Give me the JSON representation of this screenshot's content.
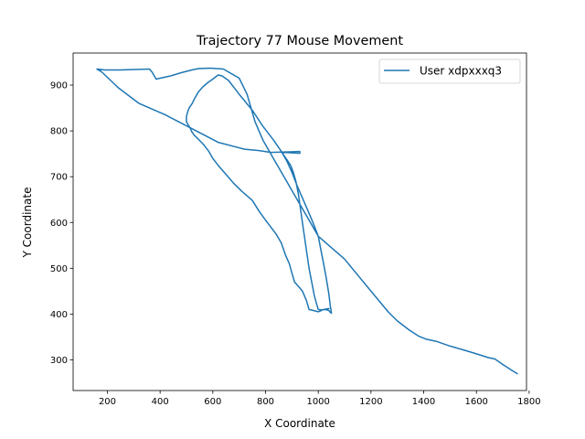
{
  "chart_data": {
    "type": "line",
    "title": "Trajectory 77 Mouse Movement",
    "xlabel": "X Coordinate",
    "ylabel": "Y Coordinate",
    "xlim": [
      70,
      1790
    ],
    "ylim": [
      233,
      970
    ],
    "x_ticks": [
      200,
      400,
      600,
      800,
      1000,
      1200,
      1400,
      1600,
      1800
    ],
    "y_ticks": [
      300,
      400,
      500,
      600,
      700,
      800,
      900
    ],
    "grid": false,
    "legend_position": "upper-right",
    "series": [
      {
        "name": "User xdpxxxq3",
        "color": "#1f77b4",
        "points": [
          [
            1755,
            270
          ],
          [
            1740,
            275
          ],
          [
            1700,
            290
          ],
          [
            1670,
            302
          ],
          [
            1645,
            305
          ],
          [
            1600,
            313
          ],
          [
            1560,
            320
          ],
          [
            1500,
            330
          ],
          [
            1450,
            340
          ],
          [
            1410,
            345
          ],
          [
            1380,
            352
          ],
          [
            1345,
            365
          ],
          [
            1300,
            385
          ],
          [
            1265,
            405
          ],
          [
            1200,
            450
          ],
          [
            1150,
            485
          ],
          [
            1100,
            520
          ],
          [
            1050,
            545
          ],
          [
            1000,
            570
          ],
          [
            960,
            610
          ],
          [
            920,
            650
          ],
          [
            880,
            690
          ],
          [
            840,
            730
          ],
          [
            790,
            780
          ],
          [
            760,
            820
          ],
          [
            730,
            880
          ],
          [
            700,
            915
          ],
          [
            640,
            935
          ],
          [
            590,
            937
          ],
          [
            545,
            936
          ],
          [
            520,
            933
          ],
          [
            480,
            927
          ],
          [
            440,
            920
          ],
          [
            400,
            915
          ],
          [
            385,
            913
          ],
          [
            370,
            928
          ],
          [
            360,
            935
          ],
          [
            300,
            934
          ],
          [
            250,
            933
          ],
          [
            190,
            933
          ],
          [
            160,
            935
          ],
          [
            180,
            928
          ],
          [
            240,
            895
          ],
          [
            320,
            860
          ],
          [
            420,
            835
          ],
          [
            520,
            805
          ],
          [
            620,
            775
          ],
          [
            720,
            760
          ],
          [
            775,
            757
          ],
          [
            820,
            753
          ],
          [
            880,
            754
          ],
          [
            930,
            755
          ],
          [
            930,
            751
          ],
          [
            900,
            752
          ],
          [
            870,
            753
          ],
          [
            865,
            750
          ],
          [
            880,
            738
          ],
          [
            895,
            725
          ],
          [
            905,
            710
          ],
          [
            915,
            690
          ],
          [
            925,
            660
          ],
          [
            935,
            620
          ],
          [
            945,
            580
          ],
          [
            955,
            540
          ],
          [
            965,
            500
          ],
          [
            975,
            470
          ],
          [
            985,
            440
          ],
          [
            995,
            420
          ],
          [
            1000,
            410
          ],
          [
            1010,
            409
          ],
          [
            1025,
            410
          ],
          [
            1040,
            408
          ],
          [
            1045,
            404
          ],
          [
            1050,
            402
          ],
          [
            1045,
            420
          ],
          [
            1040,
            445
          ],
          [
            1030,
            480
          ],
          [
            1020,
            510
          ],
          [
            1010,
            540
          ],
          [
            1000,
            570
          ],
          [
            980,
            600
          ],
          [
            950,
            640
          ],
          [
            920,
            680
          ],
          [
            900,
            710
          ],
          [
            880,
            735
          ],
          [
            860,
            755
          ],
          [
            830,
            780
          ],
          [
            790,
            810
          ],
          [
            750,
            845
          ],
          [
            700,
            880
          ],
          [
            660,
            910
          ],
          [
            635,
            920
          ],
          [
            620,
            922
          ],
          [
            600,
            913
          ],
          [
            580,
            905
          ],
          [
            560,
            895
          ],
          [
            545,
            885
          ],
          [
            530,
            870
          ],
          [
            522,
            860
          ],
          [
            510,
            850
          ],
          [
            505,
            842
          ],
          [
            500,
            832
          ],
          [
            500,
            820
          ],
          [
            505,
            815
          ],
          [
            512,
            808
          ],
          [
            520,
            798
          ],
          [
            530,
            790
          ],
          [
            545,
            782
          ],
          [
            565,
            770
          ],
          [
            585,
            755
          ],
          [
            600,
            740
          ],
          [
            620,
            725
          ],
          [
            650,
            705
          ],
          [
            680,
            685
          ],
          [
            710,
            668
          ],
          [
            750,
            648
          ],
          [
            775,
            625
          ],
          [
            800,
            605
          ],
          [
            820,
            590
          ],
          [
            840,
            575
          ],
          [
            860,
            555
          ],
          [
            875,
            530
          ],
          [
            890,
            510
          ],
          [
            900,
            490
          ],
          [
            910,
            470
          ],
          [
            925,
            460
          ],
          [
            940,
            450
          ],
          [
            955,
            430
          ],
          [
            965,
            410
          ],
          [
            980,
            408
          ],
          [
            1000,
            405
          ],
          [
            1020,
            410
          ],
          [
            1040,
            412
          ]
        ]
      }
    ]
  }
}
